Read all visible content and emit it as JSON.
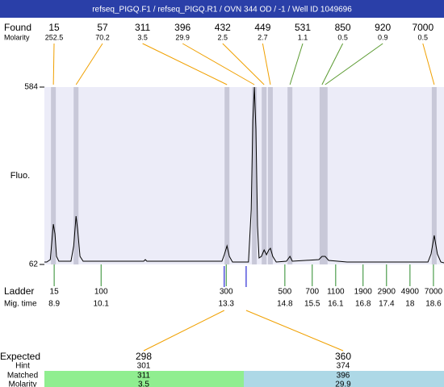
{
  "header": {
    "title": "refseq_PIGQ.F1 / refseq_PIGQ.R1 / OVN 344 OD / -1 / Well ID 1049696"
  },
  "chart_data": {
    "type": "electropherogram",
    "y_label": "Fluo.",
    "ylim": [
      62,
      584
    ],
    "yticks": [
      62,
      584
    ],
    "xlim": [
      8.65,
      18.87
    ],
    "background": "#ececf8",
    "band_color": "#c8c8d8",
    "trace": {
      "color": "#000000",
      "x": [
        8.65,
        8.71,
        8.8,
        8.84,
        8.88,
        8.92,
        8.96,
        9.02,
        9.33,
        9.4,
        9.46,
        9.5,
        9.56,
        9.64,
        11.19,
        11.23,
        11.27,
        13.19,
        13.25,
        13.32,
        13.38,
        13.46,
        13.87,
        13.94,
        13.98,
        14.02,
        14.06,
        14.1,
        14.14,
        14.2,
        14.27,
        14.33,
        14.39,
        14.43,
        14.49,
        14.58,
        14.84,
        14.93,
        14.99,
        15.67,
        15.75,
        15.83,
        15.92,
        16.39,
        18.46,
        18.54,
        18.62,
        18.7,
        18.79,
        18.87
      ],
      "y": [
        69.1,
        69.1,
        76.2,
        128.4,
        180.6,
        152.2,
        85.7,
        71.5,
        71.5,
        116.6,
        204.4,
        164.0,
        85.7,
        71.5,
        71.5,
        76.2,
        71.5,
        71.5,
        90.5,
        116.6,
        85.7,
        69.1,
        69.1,
        223.3,
        484.3,
        584,
        460.6,
        175.9,
        81.0,
        85.7,
        104.7,
        90.5,
        104.7,
        109.5,
        85.7,
        69.1,
        71.5,
        85.7,
        71.5,
        76.2,
        85.7,
        85.7,
        73.9,
        69.1,
        69.1,
        92.8,
        147.4,
        92.8,
        69.1,
        66.7
      ]
    },
    "found": {
      "label": "Found",
      "molarity_label": "Molarity",
      "peaks": [
        {
          "size": 15,
          "molarity": 252.5,
          "time": 8.88,
          "color": "#f0a000"
        },
        {
          "size": 57,
          "molarity": 70.2,
          "time": 9.46,
          "color": "#f0a000"
        },
        {
          "size": 311,
          "molarity": 3.5,
          "time": 13.32,
          "color": "#f0a000"
        },
        {
          "size": 396,
          "molarity": 29.9,
          "time": 14.02,
          "color": "#f0a000"
        },
        {
          "size": 432,
          "molarity": 2.5,
          "time": 14.27,
          "color": "#f0a000"
        },
        {
          "size": 449,
          "molarity": 2.7,
          "time": 14.43,
          "color": "#f0a000"
        },
        {
          "size": 531,
          "molarity": 1.1,
          "time": 14.93,
          "color": "#5a9a30"
        },
        {
          "size": 850,
          "molarity": 0.5,
          "time": 15.75,
          "color": "#5a9a30"
        },
        {
          "size": 920,
          "molarity": 0.9,
          "time": 15.83,
          "color": "#5a9a30"
        },
        {
          "size": 7000,
          "molarity": 0.5,
          "time": 18.62,
          "color": "#f0a000"
        }
      ]
    },
    "ladder": {
      "label": "Ladder",
      "time_label": "Mig. time",
      "color": "#2a8a2a",
      "sizes": [
        15,
        100,
        300,
        500,
        700,
        1100,
        1900,
        2900,
        4900,
        7000
      ],
      "times": [
        8.9,
        10.1,
        13.3,
        14.8,
        15.5,
        16.1,
        16.8,
        17.4,
        18,
        18.6
      ]
    },
    "expected": {
      "label": "Expected",
      "hint_label": "Hint",
      "matched_label": "Matched",
      "molarity_label": "Molarity",
      "line_color": "#f0a000",
      "marker_color": "#0000cc",
      "items": [
        {
          "size": 298,
          "time": 13.25,
          "hint": 301,
          "matched": 311,
          "molarity": 3.5,
          "color": "#90ee90"
        },
        {
          "size": 360,
          "time": 13.81,
          "hint": 374,
          "matched": 396,
          "molarity": 29.9,
          "color": "#add8e6"
        }
      ]
    }
  }
}
